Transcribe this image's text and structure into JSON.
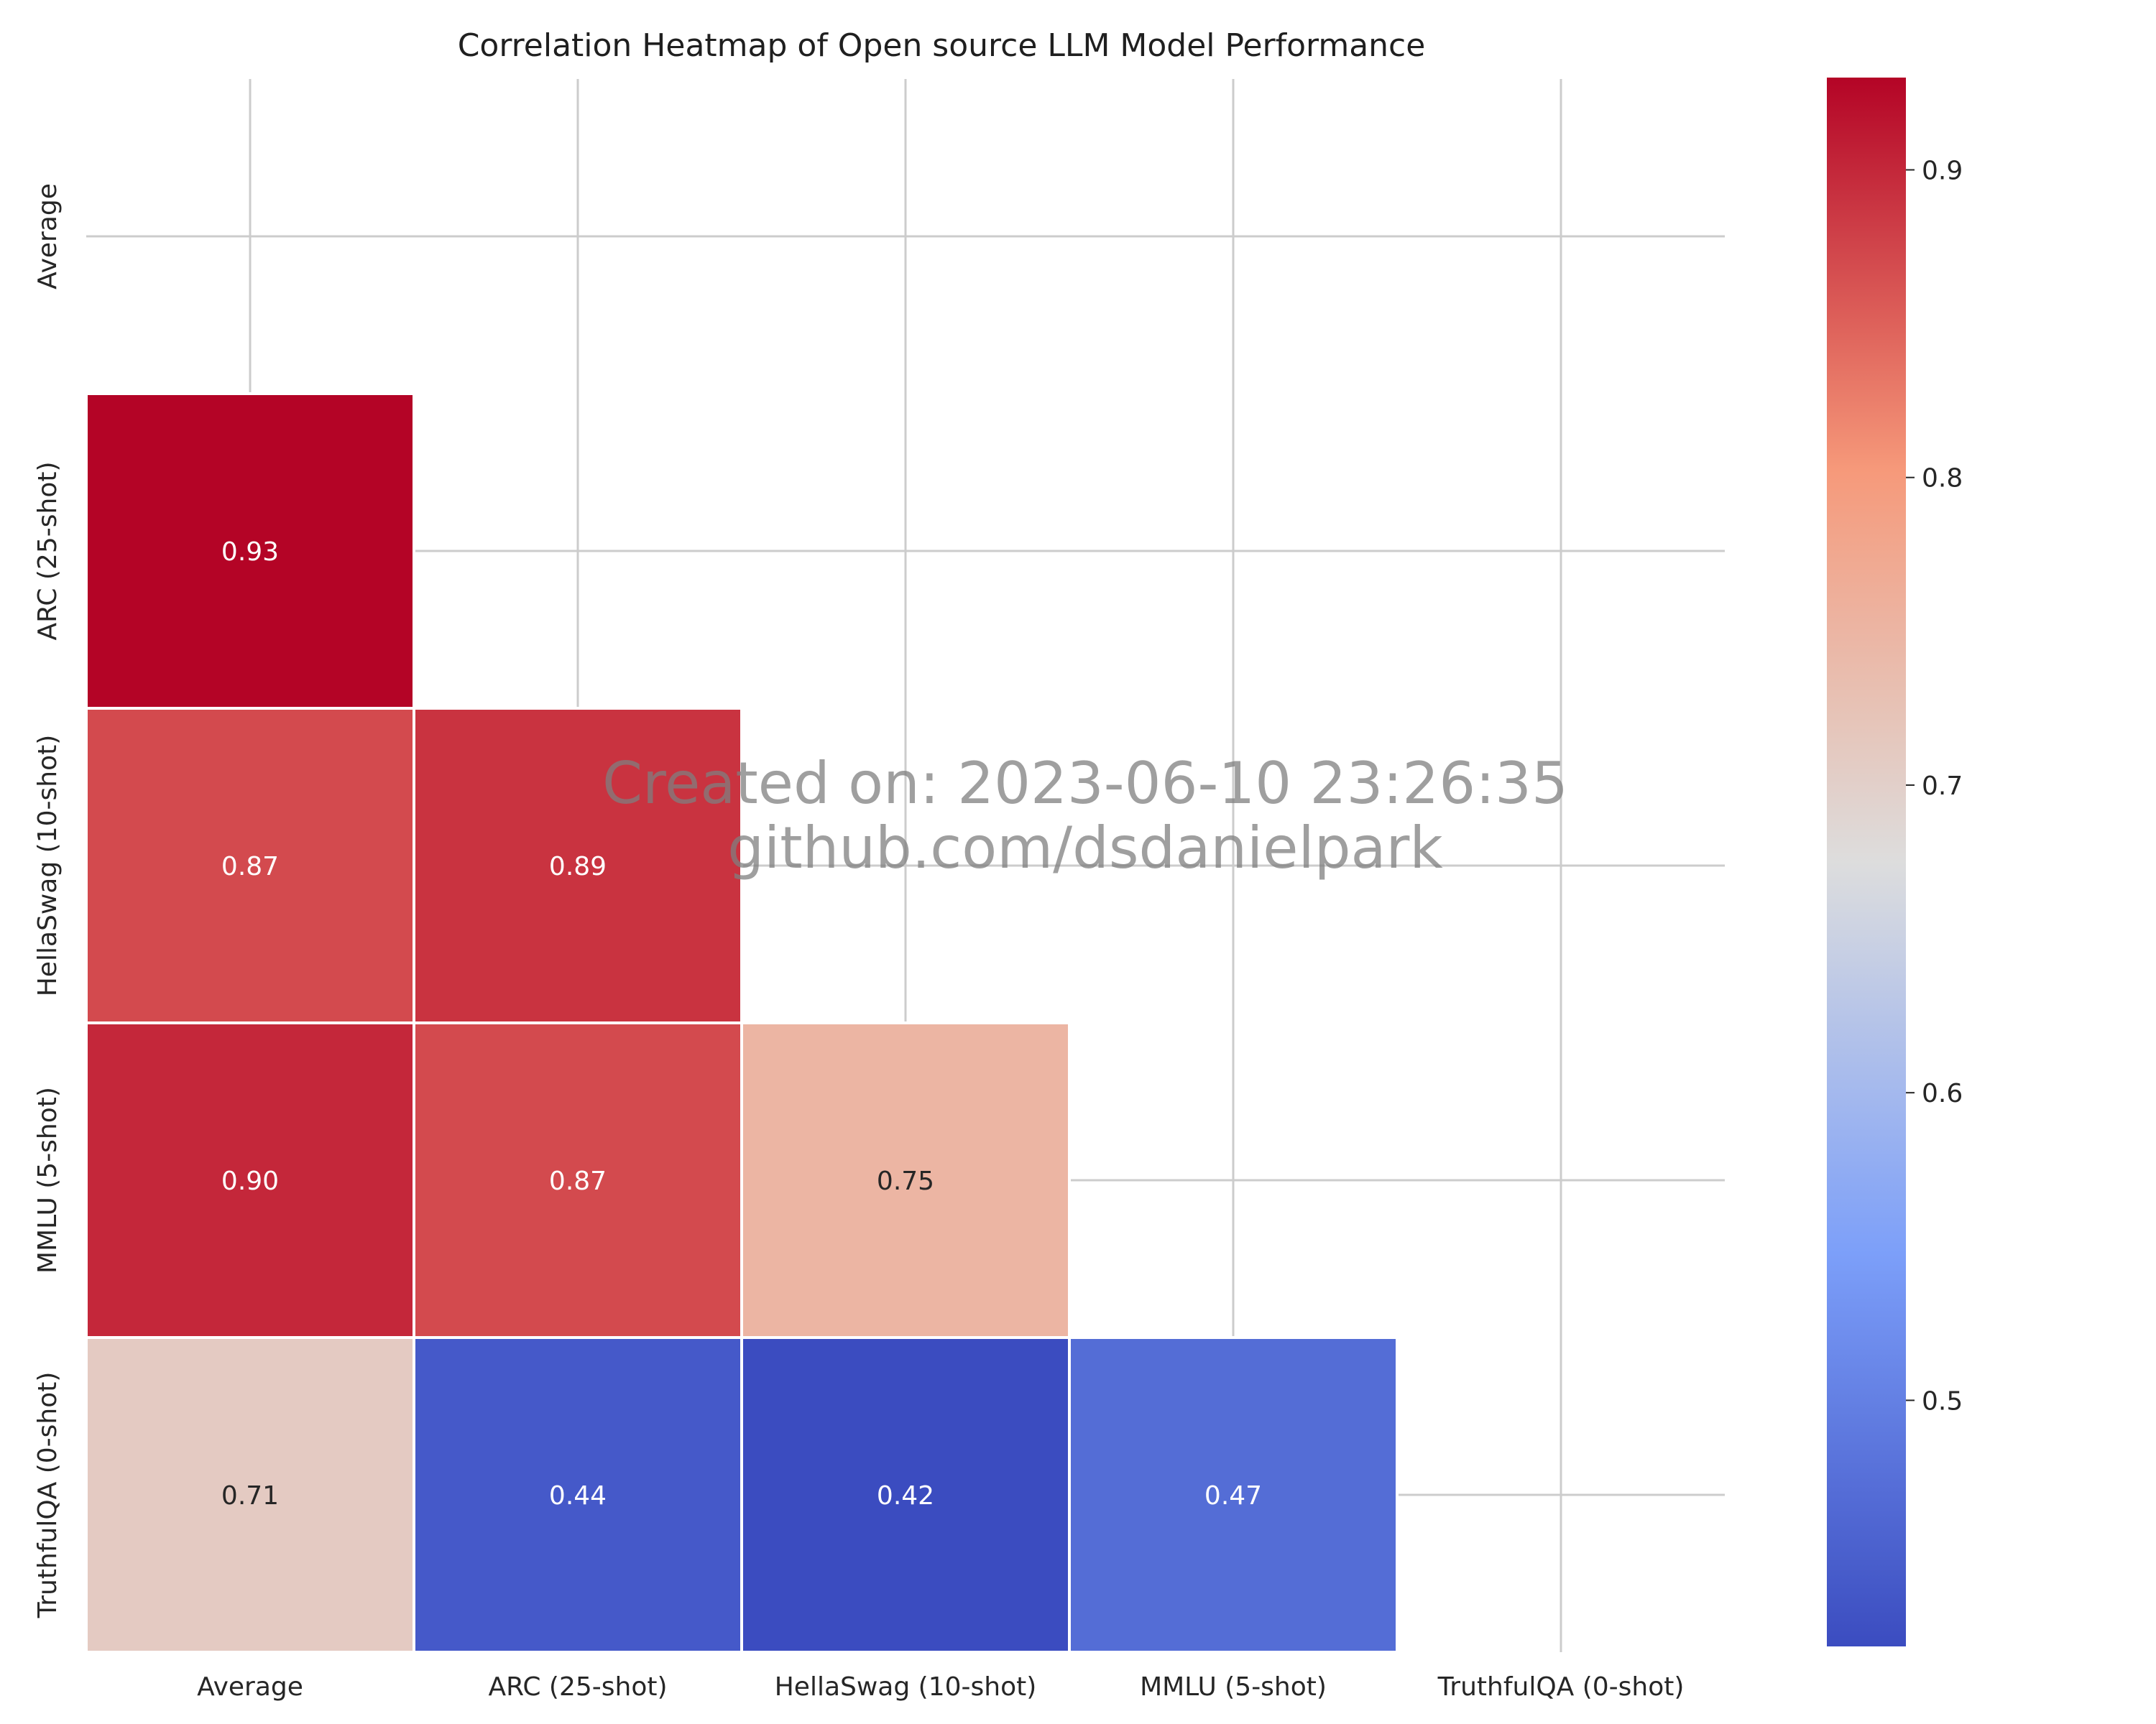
{
  "chart_data": {
    "type": "heatmap",
    "title": "Correlation Heatmap of Open source LLM Model Performance",
    "xlabel": "",
    "ylabel": "",
    "x_categories": [
      "Average",
      "ARC (25-shot)",
      "HellaSwag (10-shot)",
      "MMLU (5-shot)",
      "TruthfulQA (0-shot)"
    ],
    "y_categories": [
      "Average",
      "ARC (25-shot)",
      "HellaSwag (10-shot)",
      "MMLU (5-shot)",
      "TruthfulQA (0-shot)"
    ],
    "mask": "upper-triangle-including-diagonal",
    "cells": [
      {
        "row": 1,
        "col": 0,
        "value": 0.93,
        "label": "0.93"
      },
      {
        "row": 2,
        "col": 0,
        "value": 0.87,
        "label": "0.87"
      },
      {
        "row": 2,
        "col": 1,
        "value": 0.89,
        "label": "0.89"
      },
      {
        "row": 3,
        "col": 0,
        "value": 0.9,
        "label": "0.90"
      },
      {
        "row": 3,
        "col": 1,
        "value": 0.87,
        "label": "0.87"
      },
      {
        "row": 3,
        "col": 2,
        "value": 0.75,
        "label": "0.75"
      },
      {
        "row": 4,
        "col": 0,
        "value": 0.71,
        "label": "0.71"
      },
      {
        "row": 4,
        "col": 1,
        "value": 0.44,
        "label": "0.44"
      },
      {
        "row": 4,
        "col": 2,
        "value": 0.42,
        "label": "0.42"
      },
      {
        "row": 4,
        "col": 3,
        "value": 0.47,
        "label": "0.47"
      }
    ],
    "colormap": "coolwarm",
    "colorbar": {
      "range": [
        0.42,
        0.93
      ],
      "ticks": [
        0.5,
        0.6,
        0.7,
        0.8,
        0.9
      ],
      "tick_labels": [
        "0.5",
        "0.6",
        "0.7",
        "0.8",
        "0.9"
      ],
      "placement": "right"
    },
    "grid": true,
    "watermark": [
      "Created on: 2023-06-10 23:26:35",
      "github.com/dsdanielpark"
    ]
  }
}
